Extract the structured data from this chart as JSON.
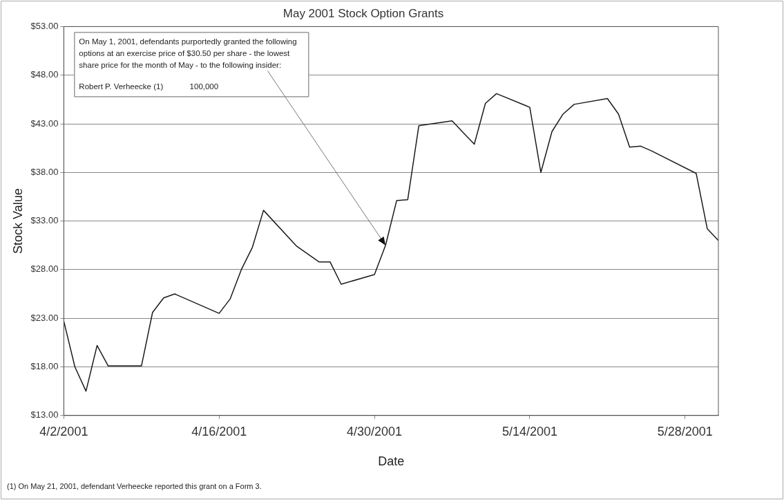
{
  "chart_data": {
    "type": "line",
    "title": "May 2001 Stock Option Grants",
    "xlabel": "Date",
    "ylabel": "Stock Value",
    "x": [
      "2001-04-02",
      "2001-04-03",
      "2001-04-04",
      "2001-04-05",
      "2001-04-06",
      "2001-04-09",
      "2001-04-10",
      "2001-04-11",
      "2001-04-12",
      "2001-04-16",
      "2001-04-17",
      "2001-04-18",
      "2001-04-19",
      "2001-04-20",
      "2001-04-23",
      "2001-04-24",
      "2001-04-25",
      "2001-04-26",
      "2001-04-27",
      "2001-04-30",
      "2001-05-01",
      "2001-05-02",
      "2001-05-03",
      "2001-05-04",
      "2001-05-07",
      "2001-05-08",
      "2001-05-09",
      "2001-05-10",
      "2001-05-11",
      "2001-05-14",
      "2001-05-15",
      "2001-05-16",
      "2001-05-17",
      "2001-05-18",
      "2001-05-21",
      "2001-05-22",
      "2001-05-23",
      "2001-05-24",
      "2001-05-25",
      "2001-05-29",
      "2001-05-30",
      "2001-05-31"
    ],
    "series": [
      {
        "color": "#1a1a1a",
        "values": [
          22.7,
          18.0,
          15.5,
          20.2,
          18.1,
          18.1,
          23.6,
          25.1,
          25.5,
          23.5,
          25.0,
          28.0,
          30.3,
          34.1,
          30.4,
          29.6,
          28.8,
          28.8,
          26.5,
          27.5,
          30.5,
          35.1,
          35.2,
          42.8,
          43.3,
          42.1,
          40.9,
          45.1,
          46.1,
          44.7,
          38.0,
          42.2,
          44.0,
          45.0,
          45.6,
          44.0,
          40.6,
          40.7,
          40.2,
          37.9,
          32.2,
          31.0
        ]
      }
    ],
    "xlim": [
      "2001-04-02",
      "2001-05-31"
    ],
    "xticks": [
      {
        "value": "2001-04-02",
        "label": "4/2/2001"
      },
      {
        "value": "2001-04-16",
        "label": "4/16/2001"
      },
      {
        "value": "2001-04-30",
        "label": "4/30/2001"
      },
      {
        "value": "2001-05-14",
        "label": "5/14/2001"
      },
      {
        "value": "2001-05-28",
        "label": "5/28/2001"
      }
    ],
    "ylim": [
      13,
      53
    ],
    "yticks": [
      {
        "value": 13,
        "label": "$13.00"
      },
      {
        "value": 18,
        "label": "$18.00"
      },
      {
        "value": 23,
        "label": "$23.00"
      },
      {
        "value": 28,
        "label": "$28.00"
      },
      {
        "value": 33,
        "label": "$33.00"
      },
      {
        "value": 38,
        "label": "$38.00"
      },
      {
        "value": 43,
        "label": "$43.00"
      },
      {
        "value": 48,
        "label": "$48.00"
      },
      {
        "value": 53,
        "label": "$53.00"
      }
    ],
    "grid": "y",
    "marker": "none",
    "line_style": "solid",
    "annotations": [
      {
        "text": "On May 1, 2001, defendants purportedly granted the following options at an exercise price of $30.50 per share - the lowest share price for the month of May - to the following insider:",
        "x": "2001-05-01",
        "y": 30.5
      },
      "Robert P. Verheecke (1)            100,000",
      "(1) On May 21, 2001, defendant Verheecke reported this grant on a Form 3."
    ]
  }
}
